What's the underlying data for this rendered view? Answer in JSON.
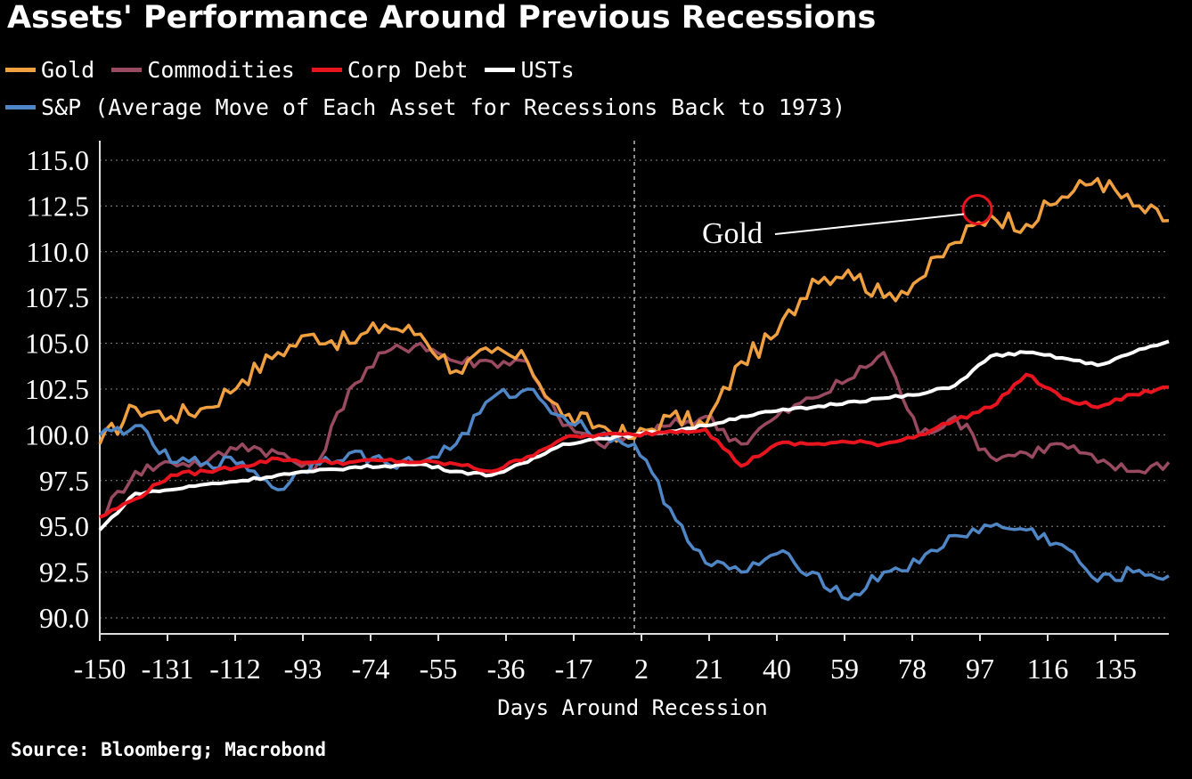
{
  "title": "Assets' Performance Around Previous Recessions",
  "source": "Source: Bloomberg; Macrobond",
  "chart_data": {
    "type": "line",
    "title": "Assets' Performance Around Previous Recessions",
    "xlabel": "Days Around Recession",
    "ylabel": "",
    "xlim": [
      -150,
      150
    ],
    "ylim": [
      90,
      115
    ],
    "yticks": [
      "115.0",
      "112.5",
      "110.0",
      "107.5",
      "105.0",
      "102.5",
      "100.0",
      "97.5",
      "95.0",
      "92.5",
      "90.0"
    ],
    "xticks": [
      "-150",
      "-131",
      "-112",
      "-93",
      "-74",
      "-55",
      "-36",
      "-17",
      "2",
      "21",
      "40",
      "59",
      "78",
      "97",
      "116",
      "135"
    ],
    "x_tick_values": [
      -150,
      -131,
      -112,
      -93,
      -74,
      -55,
      -36,
      -17,
      2,
      21,
      40,
      59,
      78,
      97,
      116,
      135
    ],
    "recession_marker_x": 0,
    "grid": "horizontal dotted",
    "legend_position": "top-left",
    "x": [
      -150,
      -140,
      -130,
      -120,
      -110,
      -100,
      -90,
      -80,
      -70,
      -60,
      -50,
      -40,
      -30,
      -20,
      -10,
      0,
      10,
      20,
      30,
      40,
      50,
      60,
      70,
      80,
      90,
      100,
      110,
      120,
      130,
      140,
      150
    ],
    "series": [
      {
        "name": "Gold",
        "color": "#f0a040",
        "values": [
          99.5,
          101.5,
          101.0,
          101.5,
          103.0,
          104.5,
          105.5,
          105.0,
          106.0,
          105.5,
          103.5,
          104.5,
          104.0,
          101.0,
          100.5,
          99.8,
          101.0,
          100.5,
          104.0,
          105.5,
          108.5,
          109.0,
          107.5,
          108.5,
          110.5,
          112.0,
          111.5,
          113.0,
          114.0,
          112.5,
          111.7
        ]
      },
      {
        "name": "Commodities",
        "color": "#9a4a60",
        "values": [
          95.5,
          98.0,
          98.5,
          98.5,
          99.5,
          99.0,
          98.0,
          102.5,
          104.5,
          105.0,
          104.0,
          104.0,
          104.0,
          100.5,
          99.5,
          100.0,
          100.5,
          101.0,
          99.5,
          101.0,
          102.0,
          103.0,
          104.5,
          100.0,
          101.0,
          98.8,
          99.0,
          99.5,
          98.5,
          98.0,
          98.5
        ]
      },
      {
        "name": "Corp Debt",
        "color": "#e8141e",
        "values": [
          95.5,
          96.5,
          97.8,
          98.0,
          98.3,
          98.7,
          98.5,
          98.5,
          98.6,
          98.5,
          98.4,
          98.0,
          98.8,
          99.8,
          100.0,
          100.0,
          100.2,
          100.3,
          98.3,
          99.5,
          99.5,
          99.6,
          99.5,
          100.0,
          100.8,
          101.5,
          103.3,
          102.0,
          101.5,
          102.2,
          102.6
        ]
      },
      {
        "name": "USTs",
        "color": "#ffffff",
        "values": [
          94.8,
          96.8,
          97.0,
          97.3,
          97.5,
          97.8,
          98.0,
          98.2,
          98.3,
          98.4,
          98.0,
          97.8,
          98.5,
          99.5,
          99.8,
          100.0,
          100.2,
          100.5,
          101.0,
          101.3,
          101.5,
          101.8,
          102.0,
          102.2,
          102.7,
          104.3,
          104.5,
          104.2,
          103.8,
          104.5,
          105.1
        ]
      },
      {
        "name": "S&P (Average Move of Each Asset for Recessions Back to 1973)",
        "color": "#4f86c6",
        "values": [
          100.0,
          100.5,
          98.5,
          98.5,
          98.5,
          97.0,
          98.5,
          99.0,
          98.5,
          98.5,
          99.5,
          102.0,
          102.5,
          101.0,
          100.0,
          99.5,
          96.0,
          93.0,
          92.5,
          93.5,
          92.5,
          91.0,
          92.5,
          93.0,
          94.5,
          95.0,
          94.8,
          94.0,
          92.0,
          92.5,
          92.3
        ]
      }
    ],
    "annotations": [
      {
        "text": "Gold",
        "series": "Gold",
        "x": 95,
        "y": 112.3
      }
    ]
  }
}
